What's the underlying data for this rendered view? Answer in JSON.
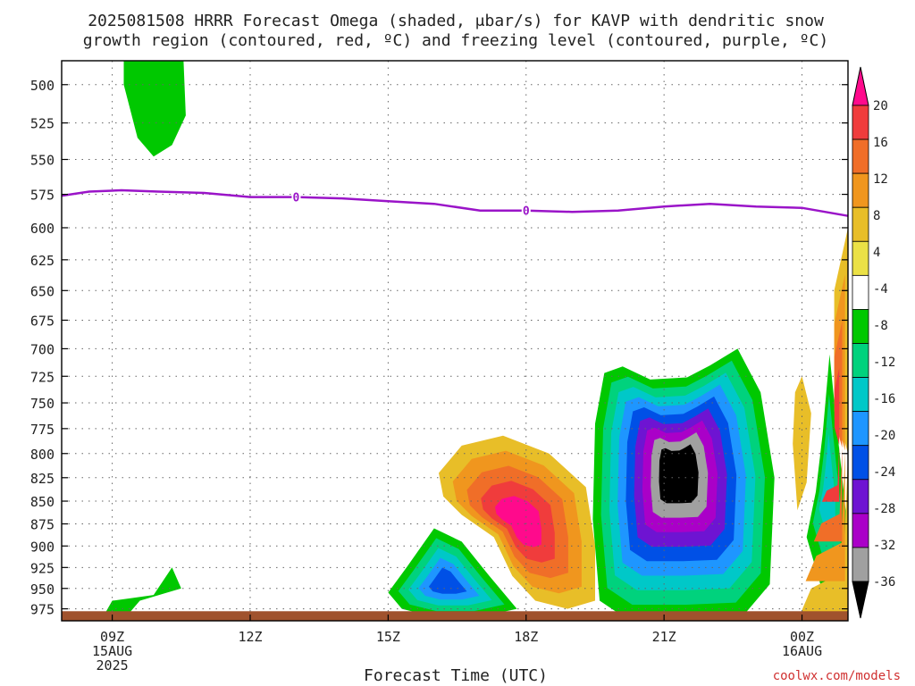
{
  "chart_data": {
    "type": "heatmap",
    "title_line1": "2025081508 HRRR Forecast Omega (shaded, μbar/s) for KAVP with dendritic snow",
    "title_line2": "growth region (contoured, red, ºC) and freezing level (contoured, purple, ºC)",
    "xlabel": "Forecast Time (UTC)",
    "ylabel": "",
    "y_ticks": [
      500,
      525,
      550,
      575,
      600,
      625,
      650,
      675,
      700,
      725,
      750,
      775,
      800,
      825,
      850,
      875,
      900,
      925,
      950,
      975
    ],
    "y_range": [
      485,
      990
    ],
    "y_scale": "log-pressure",
    "x_range_hours": [
      7.9,
      25.0
    ],
    "x_ticks": [
      {
        "hour": 9,
        "line1": "09Z",
        "line2": "15AUG",
        "line3": "2025"
      },
      {
        "hour": 12,
        "line1": "12Z",
        "line2": "",
        "line3": ""
      },
      {
        "hour": 15,
        "line1": "15Z",
        "line2": "",
        "line3": ""
      },
      {
        "hour": 18,
        "line1": "18Z",
        "line2": "",
        "line3": ""
      },
      {
        "hour": 21,
        "line1": "21Z",
        "line2": "",
        "line3": ""
      },
      {
        "hour": 24,
        "line1": "00Z",
        "line2": "16AUG",
        "line3": ""
      }
    ],
    "grid": true,
    "colorbar": {
      "placement": "right",
      "labels": [
        "20",
        "16",
        "12",
        "8",
        "4",
        "-4",
        "-8",
        "-12",
        "-16",
        "-20",
        "-24",
        "-28",
        "-32",
        "-36"
      ],
      "colors": [
        "#ff0a8c",
        "#f03c3c",
        "#f06e28",
        "#f0961e",
        "#e8be28",
        "#ebe146",
        "#ffffff",
        "#00c800",
        "#00d27d",
        "#00c8c8",
        "#1e96ff",
        "#0050e6",
        "#6e14d2",
        "#aa00c8",
        "#a0a0a0",
        "#000000"
      ]
    },
    "freezing_level": {
      "color": "#9a14c8",
      "label": "0",
      "points": [
        [
          7.9,
          576
        ],
        [
          8.5,
          573
        ],
        [
          9.2,
          572
        ],
        [
          10.0,
          573
        ],
        [
          11.0,
          574
        ],
        [
          12.0,
          577
        ],
        [
          13.0,
          577
        ],
        [
          14.0,
          578
        ],
        [
          15.0,
          580
        ],
        [
          16.0,
          582
        ],
        [
          17.0,
          587
        ],
        [
          18.0,
          587
        ],
        [
          19.0,
          588
        ],
        [
          20.0,
          587
        ],
        [
          21.0,
          584
        ],
        [
          22.0,
          582
        ],
        [
          23.0,
          584
        ],
        [
          24.0,
          585
        ],
        [
          25.0,
          591
        ]
      ],
      "label_positions": [
        [
          13.0,
          577
        ],
        [
          18.0,
          587
        ]
      ]
    },
    "omega_regions": [
      {
        "name": "upper-left-green",
        "levels": [
          -4
        ],
        "points": [
          [
            9.25,
            485
          ],
          [
            10.55,
            485
          ],
          [
            10.6,
            520
          ],
          [
            10.3,
            540
          ],
          [
            9.9,
            548
          ],
          [
            9.55,
            535
          ],
          [
            9.25,
            500
          ]
        ]
      },
      {
        "name": "lower-left-green",
        "levels": [
          -4
        ],
        "points": [
          [
            8.8,
            985
          ],
          [
            9.0,
            965
          ],
          [
            9.4,
            962
          ],
          [
            9.9,
            958
          ],
          [
            10.3,
            925
          ],
          [
            10.5,
            950
          ],
          [
            9.6,
            965
          ],
          [
            9.3,
            985
          ]
        ]
      },
      {
        "name": "ascent-cell-15z",
        "levels": [
          -4,
          -8,
          -12,
          -16,
          -20
        ],
        "points": [
          [
            15.0,
            955
          ],
          [
            15.4,
            925
          ],
          [
            16.0,
            880
          ],
          [
            16.6,
            895
          ],
          [
            17.2,
            935
          ],
          [
            17.8,
            975
          ],
          [
            17.0,
            985
          ],
          [
            16.0,
            985
          ],
          [
            15.3,
            975
          ]
        ]
      },
      {
        "name": "descent-cell-18z",
        "levels": [
          4,
          8,
          12,
          16,
          20
        ],
        "points": [
          [
            16.1,
            820
          ],
          [
            16.6,
            792
          ],
          [
            17.5,
            782
          ],
          [
            18.5,
            800
          ],
          [
            19.3,
            835
          ],
          [
            19.5,
            900
          ],
          [
            19.5,
            965
          ],
          [
            18.9,
            975
          ],
          [
            18.2,
            965
          ],
          [
            17.7,
            935
          ],
          [
            17.3,
            890
          ],
          [
            16.6,
            865
          ],
          [
            16.2,
            845
          ]
        ]
      },
      {
        "name": "strong-ascent-21z",
        "levels": [
          -4,
          -8,
          -12,
          -16,
          -20,
          -24,
          -28,
          -32,
          -36
        ],
        "points": [
          [
            19.5,
            770
          ],
          [
            19.7,
            722
          ],
          [
            20.1,
            716
          ],
          [
            20.7,
            728
          ],
          [
            21.5,
            726
          ],
          [
            22.0,
            715
          ],
          [
            22.6,
            700
          ],
          [
            23.1,
            740
          ],
          [
            23.4,
            825
          ],
          [
            23.3,
            945
          ],
          [
            22.7,
            985
          ],
          [
            21.5,
            988
          ],
          [
            20.2,
            988
          ],
          [
            19.6,
            965
          ],
          [
            19.45,
            870
          ]
        ]
      },
      {
        "name": "narrow-ascent-2z",
        "levels": [
          -4,
          -8,
          -12
        ],
        "points": [
          [
            24.6,
            705
          ],
          [
            24.75,
            770
          ],
          [
            24.95,
            860
          ],
          [
            24.95,
            940
          ],
          [
            24.4,
            945
          ],
          [
            24.1,
            890
          ],
          [
            24.3,
            840
          ],
          [
            24.45,
            780
          ]
        ]
      },
      {
        "name": "right-edge-descent",
        "levels": [
          4,
          8,
          12,
          16
        ],
        "points": [
          [
            25.0,
            570
          ],
          [
            25.0,
            990
          ],
          [
            23.9,
            990
          ],
          [
            24.2,
            950
          ],
          [
            24.9,
            930
          ],
          [
            25.0,
            800
          ],
          [
            24.7,
            750
          ],
          [
            24.7,
            650
          ],
          [
            25.0,
            600
          ]
        ]
      },
      {
        "name": "descent-sliver-00z",
        "levels": [
          4
        ],
        "points": [
          [
            24.0,
            725
          ],
          [
            24.2,
            760
          ],
          [
            24.1,
            830
          ],
          [
            23.9,
            860
          ],
          [
            23.8,
            790
          ],
          [
            23.85,
            740
          ]
        ]
      }
    ],
    "surface_band": {
      "color": "#a0522d",
      "pressure_top": 978
    }
  },
  "credit": "coolwx.com/models"
}
